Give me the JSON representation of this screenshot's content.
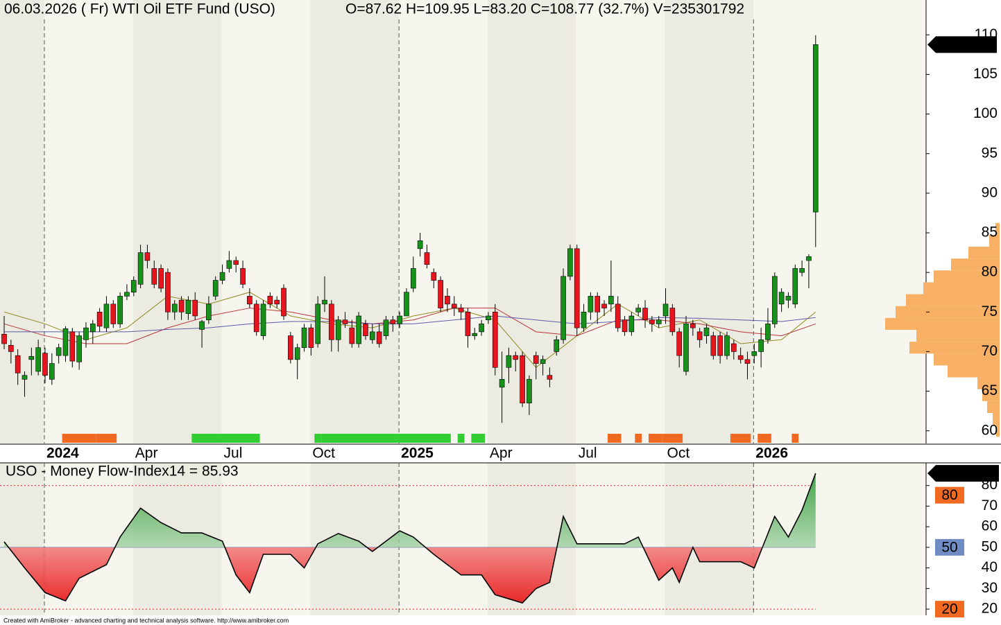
{
  "chart_data": [
    {
      "type": "candlestick",
      "title": "06.03.2026 ( Fr) WTI Oil ETF Fund (USO)",
      "subtitle": "O=87.62  H=109.95  L=83.20  C=108.77 (32.7%)  V=235301792",
      "categories": [
        null,
        null,
        null,
        null,
        null,
        null,
        "2024",
        null,
        null,
        null,
        null,
        null,
        null,
        null,
        null,
        null,
        null,
        null,
        null,
        "Apr",
        null,
        null,
        null,
        null,
        null,
        null,
        null,
        null,
        null,
        null,
        null,
        null,
        "Jul",
        null,
        null,
        null,
        null,
        null,
        null,
        null,
        null,
        null,
        null,
        null,
        null,
        "Oct",
        null,
        null,
        null,
        null,
        null,
        null,
        null,
        null,
        null,
        null,
        null,
        null,
        "2025",
        null,
        null,
        null,
        null,
        null,
        null,
        null,
        null,
        null,
        null,
        null,
        null,
        "Apr",
        null,
        null,
        null,
        null,
        null,
        null,
        null,
        null,
        null,
        null,
        null,
        null,
        "Jul",
        null,
        null,
        null,
        null,
        null,
        null,
        null,
        null,
        null,
        null,
        null,
        null,
        "Oct",
        null,
        null,
        null,
        null,
        null,
        null,
        null,
        null,
        null,
        null,
        null,
        null,
        "2026",
        null,
        null,
        null,
        null,
        null,
        null,
        null,
        null,
        null
      ],
      "open": [
        72.2,
        70.8,
        69.5,
        66.5,
        69.0,
        67.5,
        69.8,
        66.5,
        69.5,
        69.5,
        72.5,
        68.7,
        71.5,
        72.5,
        75.0,
        73.0,
        76.0,
        73.5,
        77.0,
        77.5,
        78.5,
        82.5,
        80.5,
        80.5,
        80.0,
        75.0,
        76.5,
        74.8,
        76.5,
        72.8,
        74.0,
        77.0,
        79.0,
        80.5,
        81.5,
        80.5,
        77.0,
        76.0,
        72.0,
        77.0,
        76.5,
        78.0,
        72.0,
        69.0,
        70.5,
        73.0,
        71.0,
        76.0,
        76.0,
        71.5,
        74.0,
        73.0,
        71.0,
        73.5,
        71.5,
        72.5,
        72.0,
        74.0,
        73.5,
        74.5,
        78.0,
        83.0,
        82.5,
        80.0,
        79.0,
        77.0,
        76.0,
        75.5,
        75.0,
        72.0,
        72.5,
        74.0,
        75.0,
        65.5,
        68.0,
        69.5,
        69.5,
        63.5,
        69.5,
        68.5,
        67.0,
        70.0,
        71.5,
        79.5,
        83.0,
        73.0,
        75.0,
        77.0,
        76.0,
        76.0,
        76.0,
        74.0,
        72.5,
        75.0,
        75.5,
        74.0,
        73.5,
        74.5,
        75.5,
        72.5,
        67.5,
        73.5,
        72.5,
        72.0,
        72.0,
        72.0,
        69.5,
        71.0,
        69.5,
        69.0,
        69.5,
        70.0,
        71.5,
        73.5,
        76.0,
        76.5,
        76.0,
        80.0,
        81.5,
        87.62
      ],
      "high": [
        74.5,
        71.5,
        70.3,
        67.5,
        70.5,
        71.5,
        70.5,
        69.8,
        71.0,
        73.2,
        73.0,
        72.5,
        73.7,
        74.0,
        75.5,
        77.0,
        76.5,
        77.5,
        78.5,
        79.5,
        83.5,
        83.5,
        81.5,
        81.0,
        80.5,
        76.5,
        77.0,
        77.0,
        77.5,
        74.0,
        77.0,
        79.5,
        81.0,
        82.7,
        82.0,
        81.5,
        78.0,
        76.5,
        76.5,
        77.5,
        77.0,
        78.5,
        72.5,
        71.0,
        73.5,
        73.5,
        77.0,
        79.5,
        76.5,
        74.5,
        75.0,
        74.0,
        75.0,
        74.0,
        73.5,
        73.5,
        74.5,
        74.5,
        75.0,
        78.0,
        82.0,
        85.0,
        83.5,
        80.5,
        79.5,
        78.0,
        77.0,
        76.0,
        75.5,
        73.0,
        74.0,
        75.0,
        76.0,
        70.0,
        70.5,
        70.0,
        70.0,
        67.0,
        70.0,
        69.5,
        68.0,
        72.0,
        80.5,
        83.5,
        83.5,
        76.0,
        77.5,
        77.5,
        76.5,
        81.5,
        77.0,
        74.5,
        75.0,
        76.0,
        76.5,
        74.5,
        74.5,
        78.0,
        76.0,
        73.0,
        74.5,
        74.0,
        73.0,
        73.5,
        72.5,
        72.5,
        72.5,
        71.5,
        70.5,
        70.0,
        71.0,
        73.0,
        75.5,
        80.0,
        78.0,
        77.5,
        81.0,
        81.5,
        82.3,
        109.95
      ],
      "low": [
        70.3,
        68.5,
        65.8,
        64.3,
        67.0,
        67.0,
        66.0,
        65.8,
        68.5,
        68.7,
        68.0,
        67.7,
        70.5,
        71.0,
        72.5,
        72.5,
        73.0,
        73.0,
        76.5,
        77.0,
        78.0,
        80.5,
        78.0,
        77.5,
        74.0,
        74.0,
        74.0,
        74.0,
        74.0,
        70.5,
        73.5,
        76.5,
        78.5,
        80.0,
        80.0,
        78.0,
        75.5,
        72.0,
        71.5,
        75.5,
        75.5,
        74.0,
        68.5,
        66.5,
        70.0,
        69.5,
        70.5,
        75.0,
        70.0,
        70.0,
        73.0,
        70.5,
        70.5,
        71.5,
        71.0,
        70.5,
        71.5,
        72.5,
        73.0,
        74.5,
        77.5,
        82.0,
        80.5,
        78.0,
        75.0,
        75.0,
        74.5,
        74.0,
        70.5,
        71.5,
        72.0,
        73.5,
        67.0,
        61.0,
        66.0,
        67.5,
        63.0,
        62.0,
        66.5,
        67.0,
        65.5,
        69.5,
        71.0,
        79.0,
        72.0,
        72.5,
        74.0,
        73.5,
        74.5,
        75.0,
        72.5,
        72.0,
        72.0,
        74.5,
        73.0,
        72.5,
        73.0,
        73.5,
        72.0,
        68.0,
        67.0,
        72.0,
        70.5,
        71.0,
        69.0,
        68.5,
        69.0,
        69.0,
        68.5,
        66.5,
        68.5,
        68.0,
        71.0,
        73.0,
        75.0,
        75.5,
        75.5,
        79.5,
        78.0,
        83.2
      ],
      "close": [
        71.0,
        70.0,
        67.3,
        67.0,
        69.4,
        70.5,
        67.0,
        68.5,
        70.5,
        72.9,
        68.8,
        72.0,
        73.0,
        73.5,
        73.2,
        76.0,
        73.5,
        77.0,
        77.5,
        79.0,
        82.5,
        81.5,
        78.5,
        78.0,
        75.0,
        76.0,
        75.0,
        76.5,
        74.5,
        73.8,
        76.0,
        79.0,
        80.0,
        81.5,
        81.0,
        78.5,
        76.0,
        72.5,
        76.0,
        76.0,
        76.0,
        74.5,
        69.0,
        70.5,
        73.0,
        70.5,
        76.0,
        76.5,
        71.5,
        74.0,
        73.5,
        71.0,
        74.5,
        72.0,
        72.5,
        71.0,
        74.0,
        73.5,
        74.5,
        77.5,
        80.5,
        84.0,
        81.0,
        79.0,
        75.5,
        76.0,
        75.5,
        75.0,
        72.0,
        72.3,
        73.5,
        74.5,
        68.0,
        66.5,
        69.5,
        69.0,
        63.5,
        66.5,
        68.5,
        69.0,
        66.5,
        71.5,
        79.5,
        83.0,
        73.0,
        75.0,
        77.0,
        75.0,
        75.5,
        77.0,
        73.0,
        72.5,
        74.5,
        75.5,
        74.0,
        73.5,
        74.0,
        76.0,
        72.5,
        69.5,
        73.5,
        73.0,
        71.5,
        73.0,
        69.5,
        69.5,
        72.0,
        70.0,
        69.0,
        68.5,
        70.0,
        71.5,
        73.5,
        79.5,
        77.5,
        77.0,
        80.5,
        80.5,
        82.0,
        108.77
      ],
      "up_color": "#16921a",
      "down_color": "#e8141e",
      "ylim": [
        58.4,
        114.4
      ],
      "yticks": [
        60,
        65,
        70,
        75,
        80,
        85,
        90,
        95,
        100,
        105,
        110
      ],
      "moving_averages": [
        {
          "color": "#8f8a1e",
          "x": [
            0,
            6,
            12,
            18,
            24,
            30,
            36,
            42,
            48,
            54,
            60,
            66,
            72,
            78,
            84,
            90,
            96,
            102,
            108,
            114,
            119
          ],
          "values": [
            75,
            73.5,
            71.5,
            73,
            77,
            76,
            77.5,
            74.5,
            73.5,
            73,
            74.5,
            75.5,
            74,
            68,
            72,
            76,
            73,
            74,
            71,
            71.5,
            75
          ]
        },
        {
          "color": "#b8343a",
          "x": [
            0,
            6,
            12,
            18,
            24,
            30,
            36,
            42,
            48,
            54,
            60,
            66,
            72,
            78,
            84,
            90,
            96,
            102,
            108,
            114,
            119
          ],
          "values": [
            73.5,
            72,
            71,
            71,
            73,
            74.5,
            75.5,
            75,
            74,
            73.5,
            74,
            75.5,
            75.5,
            72.5,
            72,
            74,
            74,
            73.5,
            72.5,
            72,
            73.5
          ]
        },
        {
          "color": "#5a5aa8",
          "x": [
            0,
            6,
            12,
            18,
            24,
            30,
            36,
            42,
            48,
            54,
            60,
            66,
            72,
            78,
            84,
            90,
            96,
            102,
            108,
            114,
            119
          ],
          "values": [
            72.5,
            72.5,
            72.5,
            72.5,
            72.8,
            73,
            73.5,
            73.8,
            73.8,
            73.5,
            73.5,
            74,
            74.5,
            74,
            73.5,
            73.8,
            74.3,
            74.2,
            74,
            73.8,
            74.3
          ]
        }
      ],
      "signals": [
        {
          "color": "#f26a22",
          "ranges": [
            [
              9,
              13
            ],
            [
              14,
              16
            ],
            [
              89,
              90
            ],
            [
              93,
              93
            ],
            [
              95,
              96
            ],
            [
              97,
              99
            ],
            [
              107,
              109
            ],
            [
              111,
              112
            ],
            [
              116,
              116
            ]
          ]
        },
        {
          "color": "#32cd32",
          "ranges": [
            [
              28,
              37
            ],
            [
              46,
              46
            ],
            [
              47,
              65
            ],
            [
              67,
              67
            ],
            [
              69,
              70
            ]
          ]
        }
      ],
      "volume_profile": {
        "color": "#f7b064",
        "levels": [
          60,
          61.5,
          63,
          64.5,
          66,
          67.5,
          69,
          70.5,
          72,
          73.5,
          75,
          76.5,
          78,
          79.5,
          81,
          82.5,
          84,
          85.5
        ],
        "values": [
          5,
          10,
          18,
          25,
          32,
          75,
          95,
          130,
          120,
          165,
          150,
          135,
          110,
          95,
          70,
          45,
          15,
          6
        ]
      }
    },
    {
      "type": "line",
      "title": "USO - Money Flow-Index14 = 85.93",
      "x": [
        0,
        3,
        6,
        9,
        11,
        15,
        17,
        20,
        23,
        26,
        29,
        32,
        34,
        36,
        38,
        42,
        44,
        46,
        49,
        52,
        54,
        58,
        60,
        63,
        67,
        70,
        72,
        76,
        78,
        80,
        82,
        84,
        87,
        91,
        93,
        96,
        98,
        99,
        101,
        102,
        105,
        108,
        110,
        113,
        115,
        117,
        119
      ],
      "values": [
        52.7,
        40,
        28,
        24,
        35,
        41.6,
        55,
        69,
        62,
        57,
        57,
        53,
        36.6,
        28,
        46.6,
        46.6,
        40,
        51.7,
        56.7,
        53,
        48,
        58,
        55,
        46.6,
        36.6,
        36.6,
        27,
        23,
        30,
        33,
        65,
        51.7,
        51.7,
        51.7,
        55,
        34,
        40,
        33,
        50,
        43,
        43,
        43,
        40,
        65,
        55,
        68,
        85.9286
      ],
      "color": "#000000",
      "ylim": [
        17,
        91
      ],
      "yticks": [
        20,
        30,
        40,
        50,
        60,
        70,
        80
      ],
      "levels": [
        {
          "value": 80,
          "color": "#f26a22"
        },
        {
          "value": 50,
          "color": "#6f8cc4"
        },
        {
          "value": 20,
          "color": "#f26a22"
        }
      ]
    }
  ],
  "footer": "Created with AmiBroker - advanced charting and technical analysis software. http://www.amibroker.com"
}
